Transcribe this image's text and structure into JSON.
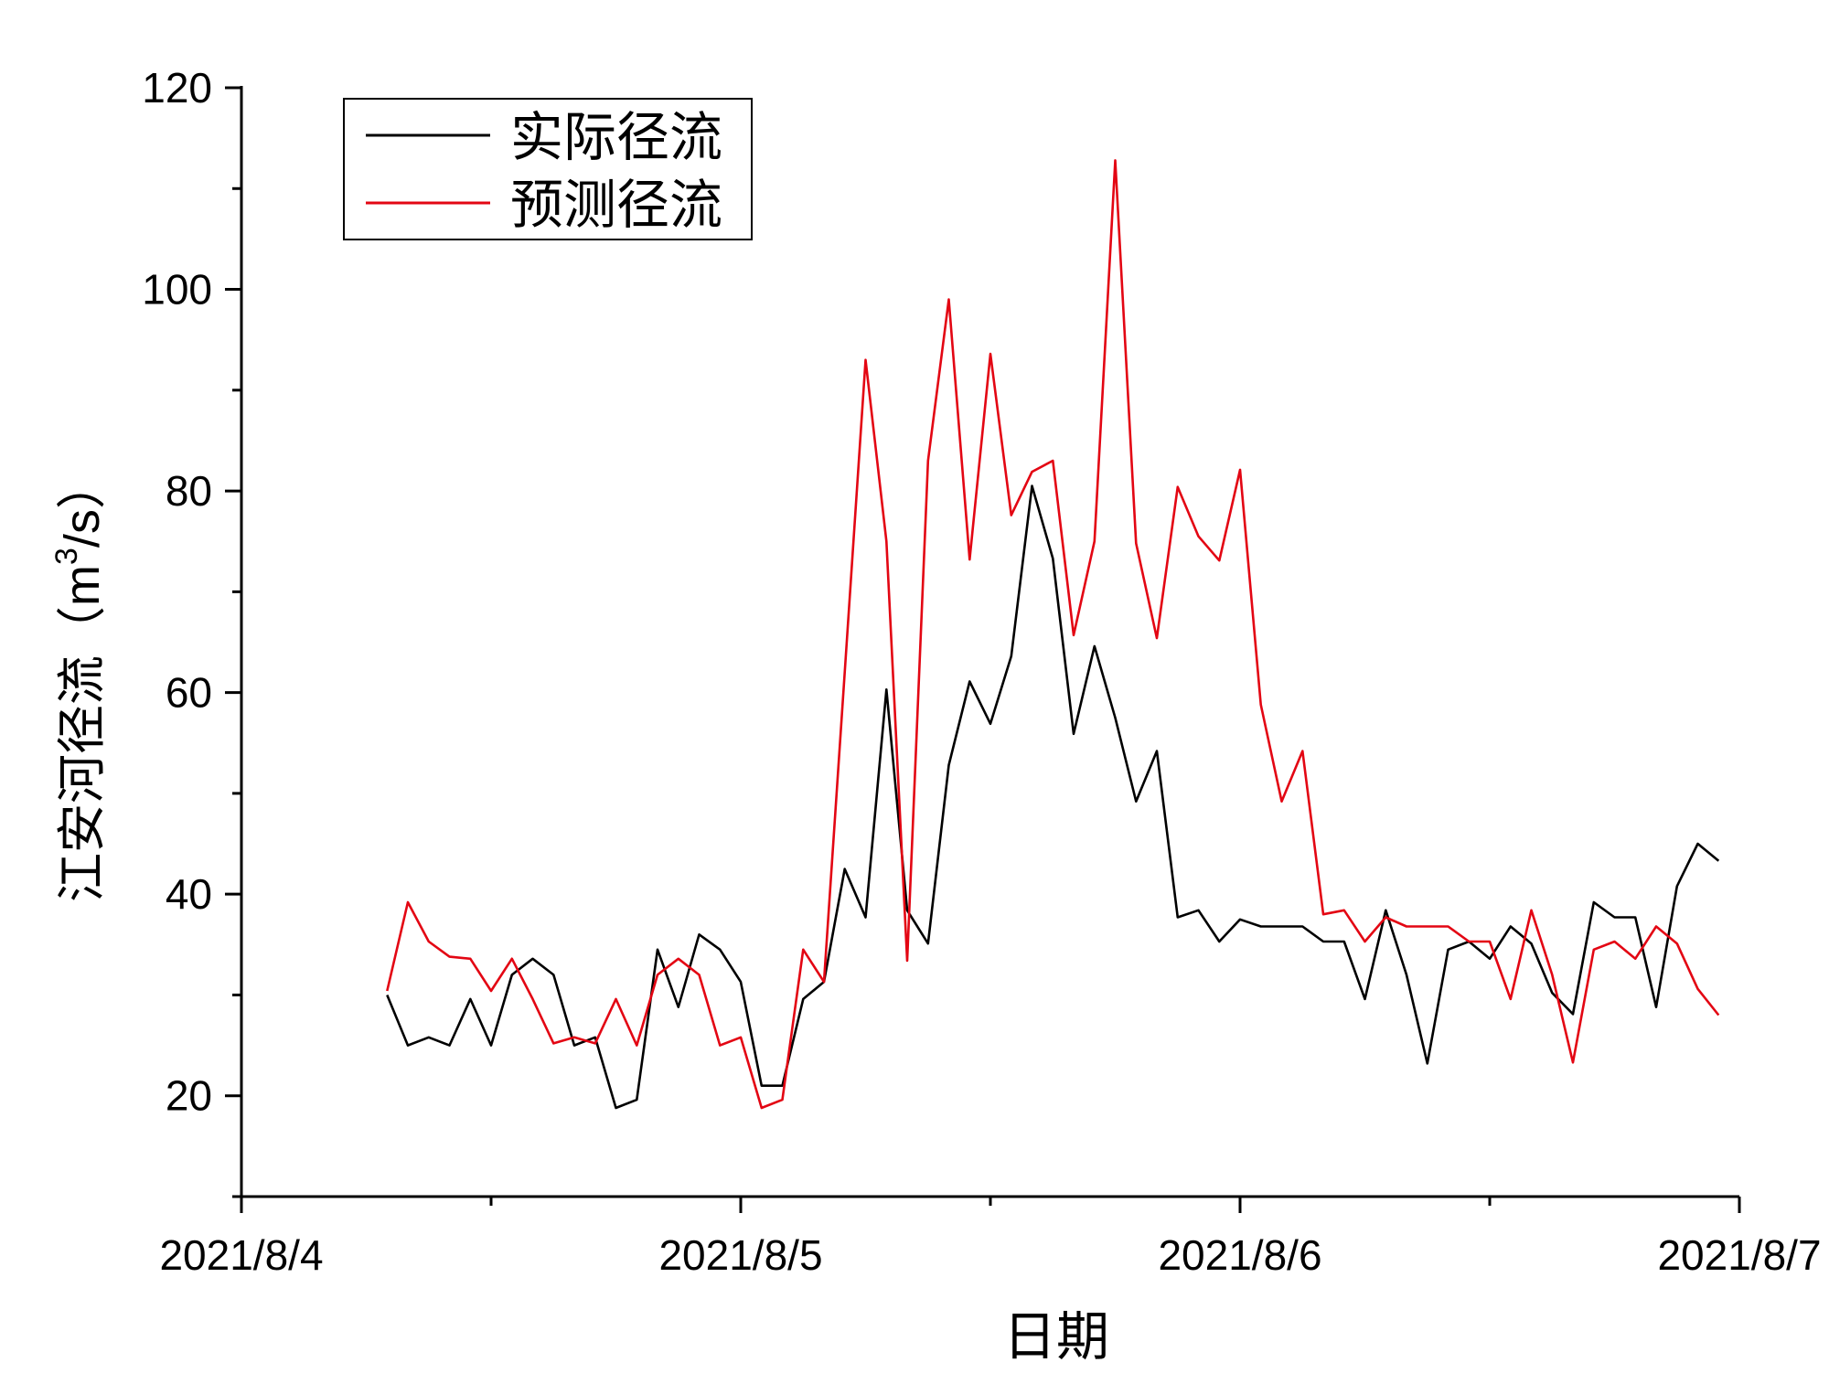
{
  "chart_data": {
    "type": "line",
    "xlabel": "日期",
    "ylabel": "江安河径流（m³/s）",
    "ylabel_parts": {
      "main": "江安河径流（m",
      "sup": "3",
      "tail": "/s）"
    },
    "x_ticks": [
      "2021/8/4",
      "2021/8/5",
      "2021/8/6",
      "2021/8/7"
    ],
    "x_range_days": [
      0,
      3
    ],
    "ylim": [
      10,
      120
    ],
    "y_ticks": [
      20,
      40,
      60,
      80,
      100,
      120
    ],
    "grid": false,
    "legend_position": "top-left",
    "sample_step_hours": 1,
    "start_offset_hours": 7,
    "series": [
      {
        "name": "实际径流",
        "color": "#000000",
        "values": [
          30.0,
          25.0,
          25.8,
          25.0,
          29.6,
          25.0,
          32.0,
          33.6,
          32.0,
          25.0,
          25.8,
          18.8,
          19.6,
          34.5,
          28.8,
          36.0,
          34.5,
          31.3,
          21.0,
          21.0,
          29.6,
          31.3,
          42.5,
          37.7,
          60.3,
          38.4,
          35.1,
          52.8,
          61.1,
          56.9,
          63.6,
          80.5,
          73.3,
          55.9,
          64.6,
          57.5,
          49.2,
          54.2,
          37.7,
          38.4,
          35.3,
          37.5,
          36.8,
          36.8,
          36.8,
          35.3,
          35.3,
          29.6,
          38.4,
          32.0,
          23.2,
          34.5,
          35.3,
          33.6,
          36.8,
          35.1,
          30.2,
          28.1,
          39.2,
          37.7,
          37.7,
          28.8,
          40.8,
          45.0,
          43.3
        ]
      },
      {
        "name": "预测径流",
        "color": "#e30613",
        "values": [
          30.4,
          39.2,
          35.3,
          33.8,
          33.6,
          30.4,
          33.6,
          29.6,
          25.2,
          25.8,
          25.2,
          29.6,
          25.0,
          32.0,
          33.6,
          32.0,
          25.0,
          25.8,
          18.8,
          19.6,
          34.5,
          31.3,
          62.0,
          93.0,
          75.0,
          33.4,
          83.0,
          99.0,
          73.2,
          93.6,
          77.6,
          81.9,
          83.0,
          65.7,
          75.0,
          112.8,
          74.8,
          65.4,
          80.4,
          75.5,
          73.1,
          82.1,
          58.8,
          49.2,
          54.2,
          38.0,
          38.4,
          35.3,
          37.7,
          36.8,
          36.8,
          36.8,
          35.3,
          35.3,
          29.6,
          38.4,
          32.0,
          23.3,
          34.5,
          35.3,
          33.6,
          36.8,
          35.1,
          30.6,
          28.0
        ]
      }
    ]
  }
}
